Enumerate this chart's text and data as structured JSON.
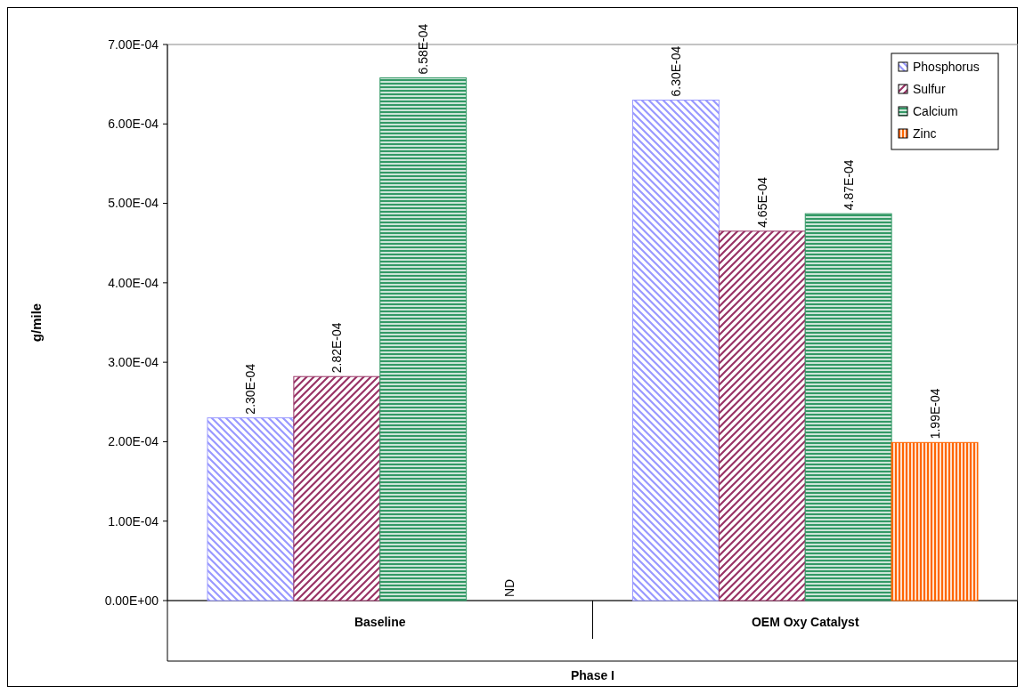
{
  "chart_data": {
    "type": "bar",
    "xlabel": "Phase I",
    "ylabel": "g/mile",
    "categories": [
      "Baseline",
      "OEM Oxy Catalyst"
    ],
    "series": [
      {
        "name": "Phosphorus",
        "color": "#9999ff",
        "values": [
          0.00023,
          0.00063
        ],
        "value_labels": [
          "2.30E-04",
          "6.30E-04"
        ]
      },
      {
        "name": "Sulfur",
        "color": "#993366",
        "values": [
          0.000282,
          0.000465
        ],
        "value_labels": [
          "2.82E-04",
          "4.65E-04"
        ]
      },
      {
        "name": "Calcium",
        "color": "#339966",
        "values": [
          0.000658,
          0.000487
        ],
        "value_labels": [
          "6.58E-04",
          "4.87E-04"
        ]
      },
      {
        "name": "Zinc",
        "color": "#ff6600",
        "values": [
          null,
          0.000199
        ],
        "value_labels": [
          "ND",
          "1.99E-04"
        ]
      }
    ],
    "ylim": [
      0,
      0.0007
    ],
    "yticks": [
      {
        "value": 0,
        "label": "0.00E+00"
      },
      {
        "value": 0.0001,
        "label": "1.00E-04"
      },
      {
        "value": 0.0002,
        "label": "2.00E-04"
      },
      {
        "value": 0.0003,
        "label": "3.00E-04"
      },
      {
        "value": 0.0004,
        "label": "4.00E-04"
      },
      {
        "value": 0.0005,
        "label": "5.00E-04"
      },
      {
        "value": 0.0006,
        "label": "6.00E-04"
      },
      {
        "value": 0.0007,
        "label": "7.00E-04"
      }
    ],
    "legend": "top right",
    "grid": false
  }
}
